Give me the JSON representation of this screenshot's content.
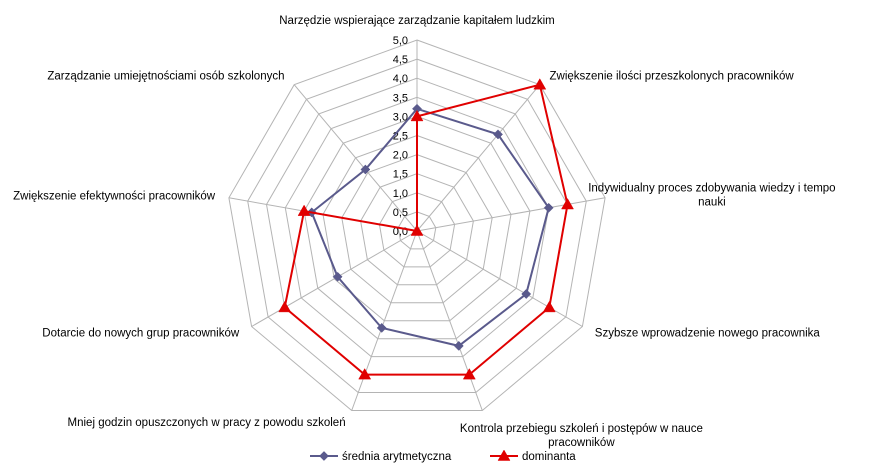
{
  "chart_data": {
    "type": "radar",
    "categories": [
      "Narzędzie wspierające zarządzanie kapitałem ludzkim",
      "Zwiększenie ilości przeszkolonych pracowników",
      "Indywidualny proces zdobywania wiedzy i tempo nauki",
      "Szybsze wprowadzenie nowego pracownika",
      "Kontrola przebiegu szkoleń i postępów w nauce pracowników",
      "Mniej godzin opuszczonych w pracy z powodu szkoleń",
      "Dotarcie do nowych grup pracowników",
      "Zwiększenie efektywności pracowników",
      "Zarządzanie umiejętnościami osób szkolonych"
    ],
    "category_lines": [
      [
        "Narzędzie wspierające zarządzanie kapitałem ludzkim"
      ],
      [
        "Zwiększenie ilości przeszkolonych pracowników"
      ],
      [
        "Indywidualny proces zdobywania wiedzy i tempo",
        "nauki"
      ],
      [
        "Szybsze wprowadzenie nowego pracownika"
      ],
      [
        "Kontrola przebiegu szkoleń i postępów w nauce",
        "pracowników"
      ],
      [
        "Mniej godzin opuszczonych w pracy z powodu szkoleń"
      ],
      [
        "Dotarcie do nowych grup pracowników"
      ],
      [
        "Zwiększenie efektywności pracowników"
      ],
      [
        "Zarządzanie umiejętnościami osób szkolonych"
      ]
    ],
    "series": [
      {
        "name": "średnia arytmetyczna",
        "color": "#5a5a8c",
        "marker": "diamond",
        "values": [
          3.2,
          3.3,
          3.5,
          3.3,
          3.2,
          2.7,
          2.4,
          2.8,
          2.1
        ]
      },
      {
        "name": "dominanta",
        "color": "#e00000",
        "marker": "triangle",
        "values": [
          3.0,
          5.0,
          4.0,
          4.0,
          4.0,
          4.0,
          4.0,
          3.0,
          0.0
        ]
      }
    ],
    "rlim": [
      0,
      5
    ],
    "tick_step": 0.5,
    "tick_labels": [
      "0,0",
      "0,5",
      "1,0",
      "1,5",
      "2,0",
      "2,5",
      "3,0",
      "3,5",
      "4,0",
      "4,5",
      "5,0"
    ],
    "grid": true,
    "legend_position": "bottom",
    "grid_color": "#b4b4b4"
  }
}
